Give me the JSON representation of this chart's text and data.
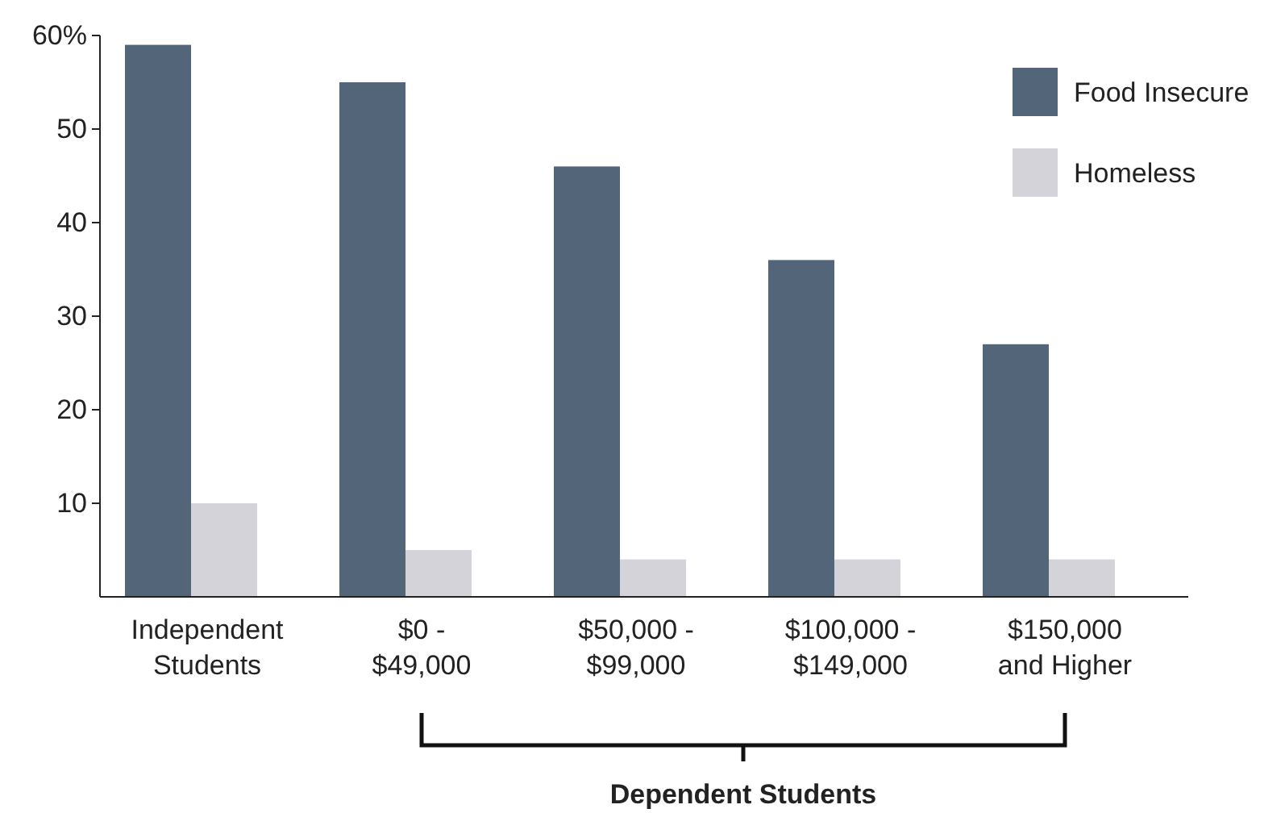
{
  "chart_data": {
    "type": "bar",
    "categories": [
      "Independent Students",
      "$0 - $49,000",
      "$50,000 - $99,000",
      "$100,000 - $149,000",
      "$150,000 and Higher"
    ],
    "series": [
      {
        "name": "Food Insecure",
        "color": "#536679",
        "values": [
          59,
          55,
          46,
          36,
          27
        ]
      },
      {
        "name": "Homeless",
        "color": "#d3d3d9",
        "values": [
          10,
          5,
          4,
          4,
          4
        ]
      }
    ],
    "ylim": [
      0,
      60
    ],
    "yticks": [
      {
        "value": 10,
        "label": "10"
      },
      {
        "value": 20,
        "label": "20"
      },
      {
        "value": 30,
        "label": "30"
      },
      {
        "value": 40,
        "label": "40"
      },
      {
        "value": 50,
        "label": "50"
      },
      {
        "value": 60,
        "label": "60%"
      }
    ],
    "grid": false,
    "legend": "top right",
    "annotations": [
      "Dependent Students"
    ]
  }
}
